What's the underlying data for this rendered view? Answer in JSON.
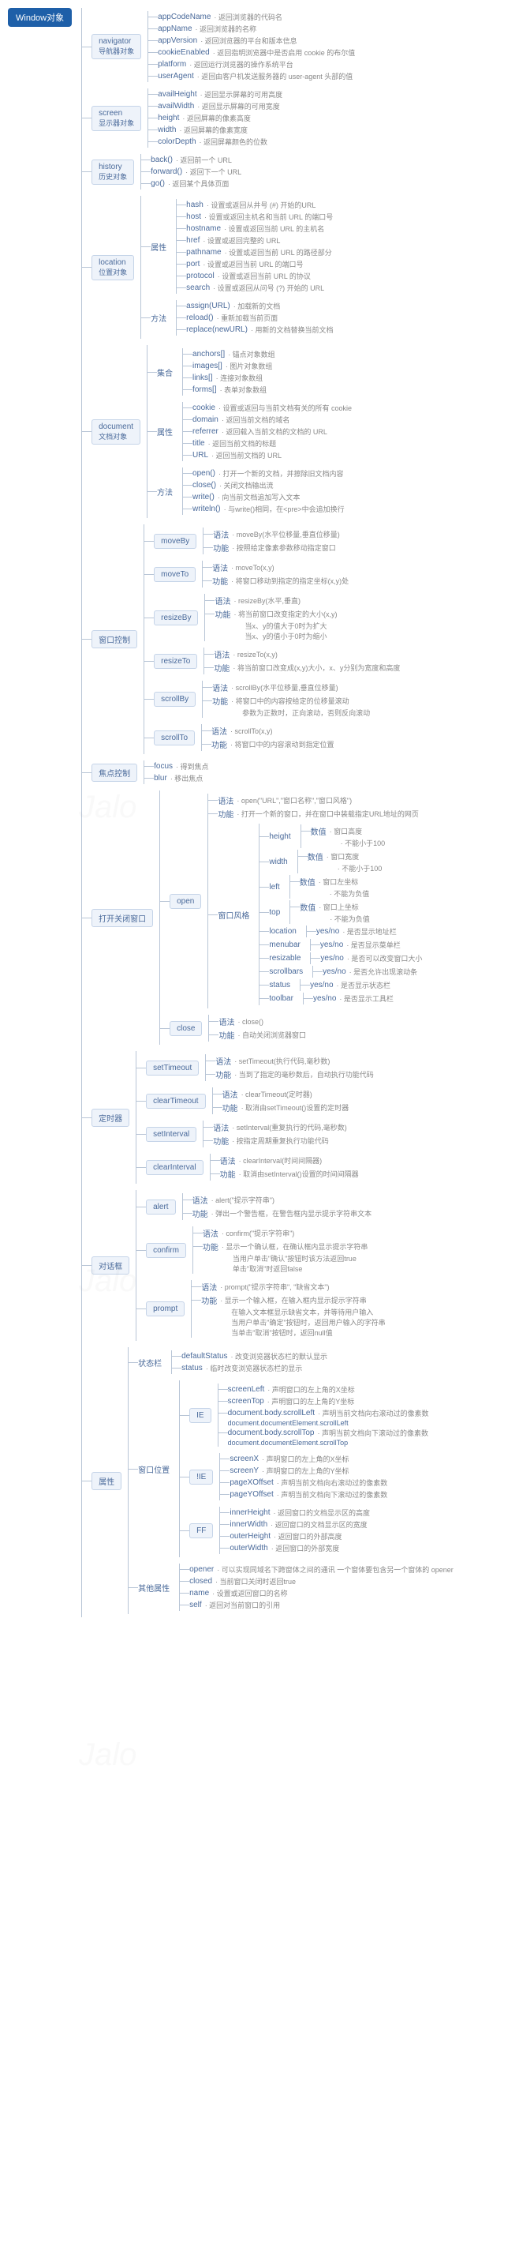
{
  "root": "Window对象",
  "colors": {
    "root_bg": "#1e5fa8",
    "root_fg": "#ffffff",
    "node_bg": "#eef3fa",
    "node_border": "#c5d4e8",
    "node_fg": "#4a6a9a",
    "line": "#b8c5d6",
    "desc": "#888888"
  },
  "font_sizes": {
    "root": 11,
    "node": 10,
    "leaf": 10,
    "desc": 9
  },
  "tree": [
    {
      "name": "navigator",
      "sub": "导航器对象",
      "items": [
        {
          "k": "appCodeName",
          "d": "返回浏览器的代码名"
        },
        {
          "k": "appName",
          "d": "返回浏览器的名称"
        },
        {
          "k": "appVersion",
          "d": "返回浏览器的平台和版本信息"
        },
        {
          "k": "cookieEnabled",
          "d": "返回指明浏览器中是否启用 cookie 的布尔值"
        },
        {
          "k": "platform",
          "d": "返回运行浏览器的操作系统平台"
        },
        {
          "k": "userAgent",
          "d": "返回由客户机发送服务器的 user-agent 头部的值"
        }
      ]
    },
    {
      "name": "screen",
      "sub": "显示器对象",
      "items": [
        {
          "k": "availHeight",
          "d": "返回显示屏幕的可用高度"
        },
        {
          "k": "availWidth",
          "d": "返回显示屏幕的可用宽度"
        },
        {
          "k": "height",
          "d": "返回屏幕的像素高度"
        },
        {
          "k": "width",
          "d": "返回屏幕的像素宽度"
        },
        {
          "k": "colorDepth",
          "d": "返回屏幕颜色的位数"
        }
      ]
    },
    {
      "name": "history",
      "sub": "历史对象",
      "items": [
        {
          "k": "back()",
          "d": "返回前一个 URL"
        },
        {
          "k": "forward()",
          "d": "返回下一个 URL"
        },
        {
          "k": "go()",
          "d": "返回某个具体页面"
        }
      ]
    },
    {
      "name": "location",
      "sub": "位置对象",
      "groups": [
        {
          "g": "属性",
          "items": [
            {
              "k": "hash",
              "d": "设置或返回从井号 (#) 开始的URL"
            },
            {
              "k": "host",
              "d": "设置或返回主机名和当前 URL 的端口号"
            },
            {
              "k": "hostname",
              "d": "设置或返回当前 URL 的主机名"
            },
            {
              "k": "href",
              "d": "设置或返回完整的 URL"
            },
            {
              "k": "pathname",
              "d": "设置或返回当前 URL 的路径部分"
            },
            {
              "k": "port",
              "d": "设置或返回当前 URL 的端口号"
            },
            {
              "k": "protocol",
              "d": "设置或返回当前 URL 的协议"
            },
            {
              "k": "search",
              "d": "设置或返回从问号 (?) 开始的 URL"
            }
          ]
        },
        {
          "g": "方法",
          "items": [
            {
              "k": "assign(URL)",
              "d": "加载新的文档"
            },
            {
              "k": "reload()",
              "d": "重新加载当前页面"
            },
            {
              "k": "replace(newURL)",
              "d": "用新的文档替换当前文档"
            }
          ]
        }
      ]
    },
    {
      "name": "document",
      "sub": "文档对象",
      "groups": [
        {
          "g": "集合",
          "items": [
            {
              "k": "anchors[]",
              "d": "锚点对象数组"
            },
            {
              "k": "images[]",
              "d": "图片对象数组"
            },
            {
              "k": "links[]",
              "d": "连接对象数组"
            },
            {
              "k": "forms[]",
              "d": "表单对象数组"
            }
          ]
        },
        {
          "g": "属性",
          "items": [
            {
              "k": "cookie",
              "d": "设置或返回与当前文档有关的所有 cookie"
            },
            {
              "k": "domain",
              "d": "返回当前文档的域名"
            },
            {
              "k": "referrer",
              "d": "返回载入当前文档的文档的 URL"
            },
            {
              "k": "title",
              "d": "返回当前文档的标题"
            },
            {
              "k": "URL",
              "d": "返回当前文档的 URL"
            }
          ]
        },
        {
          "g": "方法",
          "items": [
            {
              "k": "open()",
              "d": "打开一个新的文档，并擦除旧文档内容"
            },
            {
              "k": "close()",
              "d": "关闭文档输出流"
            },
            {
              "k": "write()",
              "d": "向当前文档追加写入文本"
            },
            {
              "k": "writeln()",
              "d": "与write()相同，在<pre>中会追加换行"
            }
          ]
        }
      ]
    },
    {
      "name": "窗口控制",
      "methods": [
        {
          "m": "moveBy",
          "rows": [
            [
              "语法",
              "moveBy(水平位移量,垂直位移量)"
            ],
            [
              "功能",
              "按照给定像素参数移动指定窗口"
            ]
          ]
        },
        {
          "m": "moveTo",
          "rows": [
            [
              "语法",
              "moveTo(x,y)"
            ],
            [
              "功能",
              "将窗口移动到指定的指定坐标(x,y)处"
            ]
          ]
        },
        {
          "m": "resizeBy",
          "rows": [
            [
              "语法",
              "resizeBy(水平,垂直)"
            ],
            [
              "功能",
              "将当前窗口改变指定的大小(x,y)\n当x、y的值大于0时为扩大\n当x、y的值小于0时为缩小"
            ]
          ]
        },
        {
          "m": "resizeTo",
          "rows": [
            [
              "语法",
              "resizeTo(x,y)"
            ],
            [
              "功能",
              "将当前窗口改变成(x,y)大小，x、y分别为宽度和高度"
            ]
          ]
        },
        {
          "m": "scrollBy",
          "rows": [
            [
              "语法",
              "scrollBy(水平位移量,垂直位移量)"
            ],
            [
              "功能",
              "将窗口中的内容按给定的位移量滚动\n参数为正数时，正向滚动，否则反向滚动"
            ]
          ]
        },
        {
          "m": "scrollTo",
          "rows": [
            [
              "语法",
              "scrollTo(x,y)"
            ],
            [
              "功能",
              "将窗口中的内容滚动到指定位置"
            ]
          ]
        }
      ]
    },
    {
      "name": "焦点控制",
      "items": [
        {
          "k": "focus",
          "d": "得到焦点"
        },
        {
          "k": "blur",
          "d": "移出焦点"
        }
      ]
    },
    {
      "name": "打开关闭窗口",
      "children": [
        {
          "m": "open",
          "rows": [
            [
              "语法",
              "open(\"URL\",\"窗口名称\",\"窗口风格\")"
            ],
            [
              "功能",
              "打开一个新的窗口，并在窗口中装载指定URL地址的网页"
            ]
          ],
          "specs": {
            "label": "窗口风格",
            "opts": [
              {
                "k": "height",
                "v": "数值",
                "d": "窗口高度",
                "n": "不能小于100"
              },
              {
                "k": "width",
                "v": "数值",
                "d": "窗口宽度",
                "n": "不能小于100"
              },
              {
                "k": "left",
                "v": "数值",
                "d": "窗口左坐标",
                "n": "不能为负值"
              },
              {
                "k": "top",
                "v": "数值",
                "d": "窗口上坐标",
                "n": "不能为负值"
              },
              {
                "k": "location",
                "v": "yes/no",
                "d": "是否显示地址栏"
              },
              {
                "k": "menubar",
                "v": "yes/no",
                "d": "是否显示菜单栏"
              },
              {
                "k": "resizable",
                "v": "yes/no",
                "d": "是否可以改变窗口大小"
              },
              {
                "k": "scrollbars",
                "v": "yes/no",
                "d": "是否允许出现滚动条"
              },
              {
                "k": "status",
                "v": "yes/no",
                "d": "是否显示状态栏"
              },
              {
                "k": "toolbar",
                "v": "yes/no",
                "d": "是否显示工具栏"
              }
            ]
          }
        },
        {
          "m": "close",
          "rows": [
            [
              "语法",
              "close()"
            ],
            [
              "功能",
              "自动关闭浏览器窗口"
            ]
          ]
        }
      ]
    },
    {
      "name": "定时器",
      "methods": [
        {
          "m": "setTimeout",
          "rows": [
            [
              "语法",
              "setTimeout(执行代码,毫秒数)"
            ],
            [
              "功能",
              "当到了指定的毫秒数后，自动执行功能代码"
            ]
          ]
        },
        {
          "m": "clearTimeout",
          "rows": [
            [
              "语法",
              "clearTimeout(定时器)"
            ],
            [
              "功能",
              "取消由setTimeout()设置的定时器"
            ]
          ]
        },
        {
          "m": "setInterval",
          "rows": [
            [
              "语法",
              "setInterval(重复执行的代码,毫秒数)"
            ],
            [
              "功能",
              "按指定周期重复执行功能代码"
            ]
          ]
        },
        {
          "m": "clearInterval",
          "rows": [
            [
              "语法",
              "clearInterval(时间间隔器)"
            ],
            [
              "功能",
              "取消由setInterval()设置的时间间隔器"
            ]
          ]
        }
      ]
    },
    {
      "name": "对话框",
      "methods": [
        {
          "m": "alert",
          "rows": [
            [
              "语法",
              "alert(\"提示字符串\")"
            ],
            [
              "功能",
              "弹出一个警告框，在警告框内显示提示字符串文本"
            ]
          ]
        },
        {
          "m": "confirm",
          "rows": [
            [
              "语法",
              "confirm(\"提示字符串\")"
            ],
            [
              "功能",
              "显示一个确认框，在确认框内显示提示字符串\n当用户单击\"确认\"按钮时该方法返回true\n单击\"取消\"时返回false"
            ]
          ]
        },
        {
          "m": "prompt",
          "rows": [
            [
              "语法",
              "prompt(\"提示字符串\", \"缺省文本\")"
            ],
            [
              "功能",
              "显示一个输入框，在输入框内显示提示字符串\n在输入文本框显示缺省文本，并等待用户输入\n当用户单击\"确定\"按钮时，返回用户输入的字符串\n当单击\"取消\"按钮时，返回null值"
            ]
          ]
        }
      ]
    },
    {
      "name": "属性",
      "groups": [
        {
          "g": "状态栏",
          "items": [
            {
              "k": "defaultStatus",
              "d": "改变浏览器状态栏的默认显示"
            },
            {
              "k": "status",
              "d": "临时改变浏览器状态栏的显示"
            }
          ]
        },
        {
          "g": "窗口位置",
          "sub": [
            {
              "b": "IE",
              "items": [
                {
                  "k": "screenLeft",
                  "d": "声明窗口的左上角的X坐标"
                },
                {
                  "k": "screenTop",
                  "d": "声明窗口的左上角的Y坐标"
                },
                {
                  "k": "document.body.scrollLeft\ndocument.documentElement.scrollLeft",
                  "d": "声明当前文档向右滚动过的像素数"
                },
                {
                  "k": "document.body.scrollTop\ndocument.documentElement.scrollTop",
                  "d": "声明当前文档向下滚动过的像素数"
                }
              ]
            },
            {
              "b": "!IE",
              "items": [
                {
                  "k": "screenX",
                  "d": "声明窗口的左上角的X坐标"
                },
                {
                  "k": "screenY",
                  "d": "声明窗口的左上角的Y坐标"
                },
                {
                  "k": "pageXOffset",
                  "d": "声明当前文档向右滚动过的像素数"
                },
                {
                  "k": "pageYOffset",
                  "d": "声明当前文档向下滚动过的像素数"
                }
              ]
            },
            {
              "b": "FF",
              "items": [
                {
                  "k": "innerHeight",
                  "d": "返回窗口的文档显示区的高度"
                },
                {
                  "k": "innerWidth",
                  "d": "返回窗口的文档显示区的宽度"
                },
                {
                  "k": "outerHeight",
                  "d": "返回窗口的外部高度"
                },
                {
                  "k": "outerWidth",
                  "d": "返回窗口的外部宽度"
                }
              ]
            }
          ]
        },
        {
          "g": "其他属性",
          "items": [
            {
              "k": "opener",
              "d": "可以实现同域名下跨窗体之间的通讯\n一个窗体要包含另一个窗体的 opener"
            },
            {
              "k": "closed",
              "d": "当前窗口关闭时返回true"
            },
            {
              "k": "name",
              "d": "设置或返回窗口的名称"
            },
            {
              "k": "self",
              "d": "返回对当前窗口的引用"
            }
          ]
        }
      ]
    }
  ]
}
